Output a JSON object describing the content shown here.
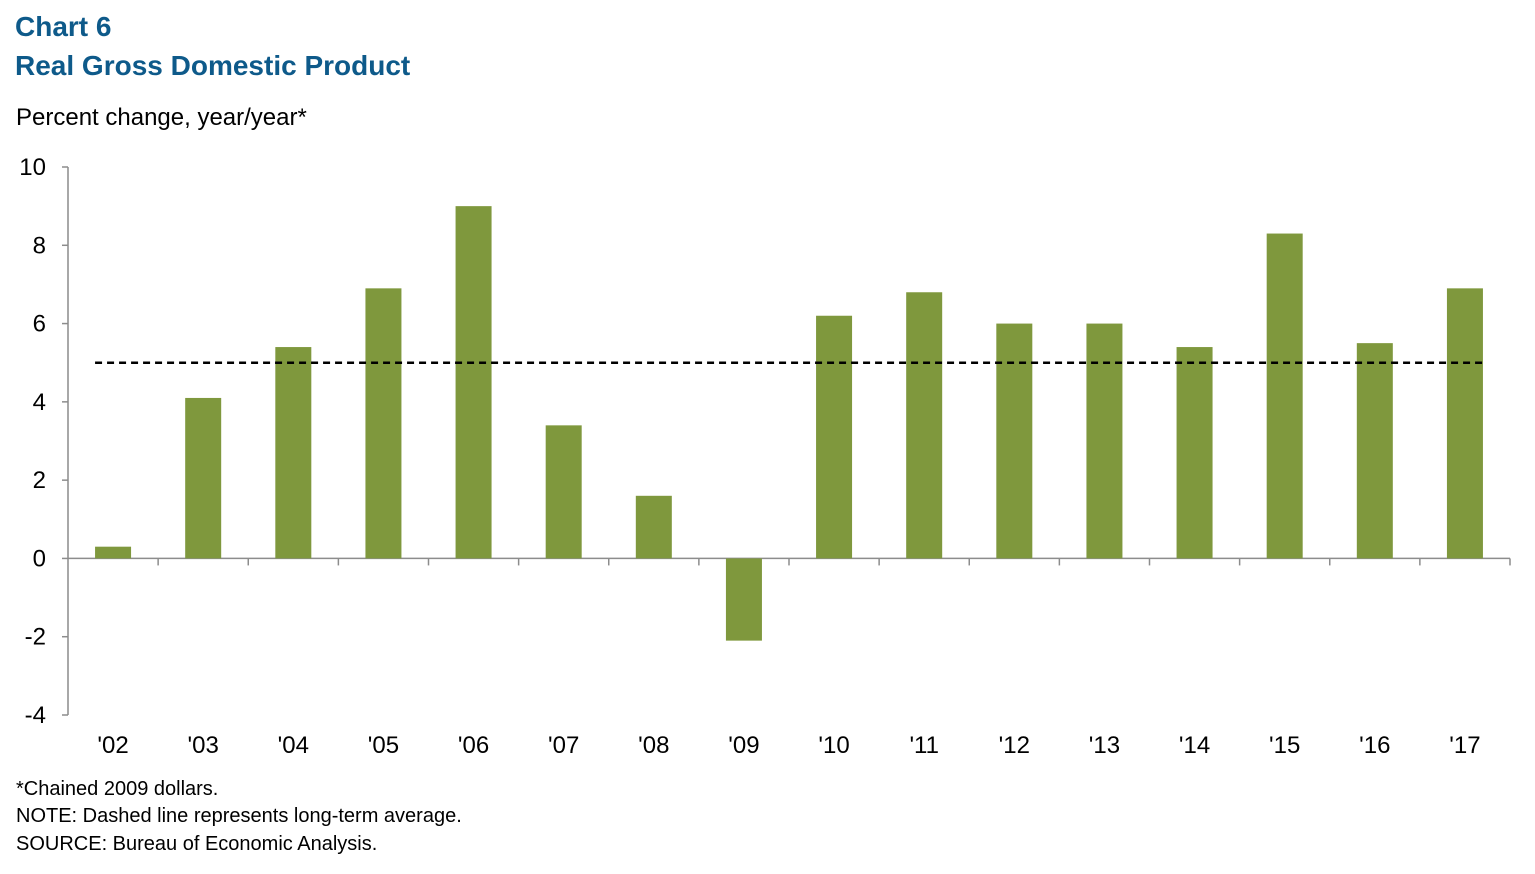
{
  "header": {
    "chart_number": "Chart 6",
    "title": "Real Gross Domestic Product"
  },
  "chart_data": {
    "type": "bar",
    "ylabel": "Percent change, year/year*",
    "categories": [
      "'02",
      "'03",
      "'04",
      "'05",
      "'06",
      "'07",
      "'08",
      "'09",
      "'10",
      "'11",
      "'12",
      "'13",
      "'14",
      "'15",
      "'16",
      "'17"
    ],
    "values": [
      0.3,
      4.1,
      5.4,
      6.9,
      9.0,
      3.4,
      1.6,
      -2.1,
      6.2,
      6.8,
      6.0,
      6.0,
      5.4,
      8.3,
      5.5,
      6.9
    ],
    "ylim": [
      -4,
      10
    ],
    "yticks": [
      10,
      8,
      6,
      4,
      2,
      0,
      -2,
      -4
    ],
    "reference_line": {
      "value": 5.0,
      "style": "dashed",
      "label": "long-term average"
    },
    "bar_color": "#7f983d",
    "grid": false,
    "legend": "none"
  },
  "footnotes": {
    "note1": "*Chained 2009 dollars.",
    "note2": "NOTE: Dashed line represents long-term average.",
    "note3": "SOURCE: Bureau of Economic Analysis."
  }
}
